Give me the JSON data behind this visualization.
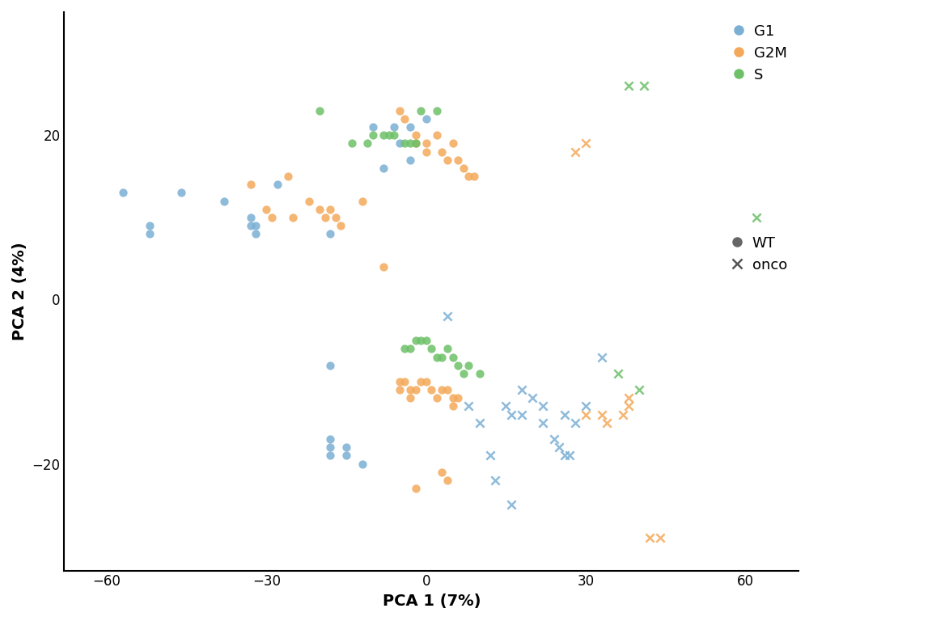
{
  "title": "",
  "xlabel": "PCA 1 (7%)",
  "ylabel": "PCA 2 (4%)",
  "xlim": [
    -68,
    70
  ],
  "ylim": [
    -33,
    35
  ],
  "xticks": [
    -60,
    -30,
    0,
    30,
    60
  ],
  "yticks": [
    -20,
    0,
    20
  ],
  "colors": {
    "G1": "#7BAFD4",
    "G2M": "#F4A95A",
    "S": "#6DC068"
  },
  "background": "#FFFFFF",
  "points": {
    "G1_WT": [
      [
        -57,
        13
      ],
      [
        -52,
        8
      ],
      [
        -52,
        9
      ],
      [
        -46,
        13
      ],
      [
        -38,
        12
      ],
      [
        -33,
        10
      ],
      [
        -33,
        9
      ],
      [
        -32,
        9
      ],
      [
        -32,
        8
      ],
      [
        -28,
        14
      ],
      [
        -18,
        8
      ],
      [
        -10,
        21
      ],
      [
        -6,
        21
      ],
      [
        -8,
        16
      ],
      [
        -5,
        19
      ],
      [
        -3,
        21
      ],
      [
        0,
        22
      ],
      [
        -3,
        17
      ],
      [
        -18,
        -8
      ],
      [
        -18,
        -17
      ],
      [
        -18,
        -18
      ],
      [
        -18,
        -19
      ],
      [
        -15,
        -18
      ],
      [
        -15,
        -19
      ],
      [
        -12,
        -20
      ]
    ],
    "G1_onco": [
      [
        4,
        -2
      ],
      [
        8,
        -13
      ],
      [
        10,
        -15
      ],
      [
        12,
        -19
      ],
      [
        13,
        -22
      ],
      [
        16,
        -25
      ],
      [
        15,
        -13
      ],
      [
        16,
        -14
      ],
      [
        18,
        -14
      ],
      [
        18,
        -11
      ],
      [
        20,
        -12
      ],
      [
        22,
        -13
      ],
      [
        22,
        -15
      ],
      [
        24,
        -17
      ],
      [
        25,
        -18
      ],
      [
        26,
        -19
      ],
      [
        27,
        -19
      ],
      [
        26,
        -14
      ],
      [
        28,
        -15
      ],
      [
        30,
        -13
      ],
      [
        33,
        -7
      ]
    ],
    "G2M_WT": [
      [
        -33,
        14
      ],
      [
        -30,
        11
      ],
      [
        -29,
        10
      ],
      [
        -26,
        15
      ],
      [
        -25,
        10
      ],
      [
        -22,
        12
      ],
      [
        -20,
        11
      ],
      [
        -19,
        10
      ],
      [
        -18,
        11
      ],
      [
        -17,
        10
      ],
      [
        -16,
        9
      ],
      [
        -12,
        12
      ],
      [
        -8,
        4
      ],
      [
        -5,
        23
      ],
      [
        -4,
        22
      ],
      [
        -2,
        19
      ],
      [
        -2,
        20
      ],
      [
        0,
        18
      ],
      [
        0,
        19
      ],
      [
        2,
        20
      ],
      [
        3,
        18
      ],
      [
        4,
        17
      ],
      [
        5,
        19
      ],
      [
        6,
        17
      ],
      [
        7,
        16
      ],
      [
        8,
        15
      ],
      [
        9,
        15
      ],
      [
        -5,
        -10
      ],
      [
        -5,
        -11
      ],
      [
        -4,
        -10
      ],
      [
        -3,
        -11
      ],
      [
        -3,
        -12
      ],
      [
        -2,
        -11
      ],
      [
        -1,
        -10
      ],
      [
        0,
        -10
      ],
      [
        1,
        -11
      ],
      [
        2,
        -12
      ],
      [
        3,
        -11
      ],
      [
        4,
        -11
      ],
      [
        5,
        -12
      ],
      [
        5,
        -13
      ],
      [
        6,
        -12
      ],
      [
        3,
        -21
      ],
      [
        4,
        -22
      ],
      [
        -2,
        -23
      ]
    ],
    "G2M_onco": [
      [
        28,
        18
      ],
      [
        30,
        19
      ],
      [
        30,
        -14
      ],
      [
        33,
        -14
      ],
      [
        34,
        -15
      ],
      [
        37,
        -14
      ],
      [
        38,
        -12
      ],
      [
        38,
        -13
      ],
      [
        42,
        -29
      ],
      [
        44,
        -29
      ]
    ],
    "S_WT": [
      [
        -20,
        23
      ],
      [
        -14,
        19
      ],
      [
        -11,
        19
      ],
      [
        -10,
        20
      ],
      [
        -8,
        20
      ],
      [
        -7,
        20
      ],
      [
        -6,
        20
      ],
      [
        -4,
        19
      ],
      [
        -3,
        19
      ],
      [
        -2,
        19
      ],
      [
        -1,
        23
      ],
      [
        2,
        23
      ],
      [
        -4,
        -6
      ],
      [
        -3,
        -6
      ],
      [
        -2,
        -5
      ],
      [
        -1,
        -5
      ],
      [
        0,
        -5
      ],
      [
        1,
        -6
      ],
      [
        2,
        -7
      ],
      [
        3,
        -7
      ],
      [
        4,
        -6
      ],
      [
        5,
        -7
      ],
      [
        6,
        -8
      ],
      [
        7,
        -9
      ],
      [
        8,
        -8
      ],
      [
        10,
        -9
      ]
    ],
    "S_onco": [
      [
        38,
        26
      ],
      [
        41,
        26
      ],
      [
        36,
        -9
      ],
      [
        40,
        -11
      ],
      [
        62,
        10
      ]
    ]
  }
}
